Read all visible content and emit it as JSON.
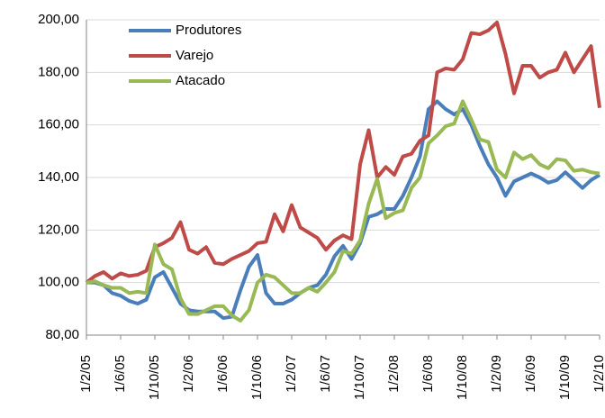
{
  "chart_data": {
    "type": "line",
    "categories": [
      "1/2/05",
      null,
      null,
      null,
      "1/6/05",
      null,
      null,
      null,
      "1/10/05",
      null,
      null,
      null,
      "1/2/06",
      null,
      null,
      null,
      "1/6/06",
      null,
      null,
      null,
      "1/10/06",
      null,
      null,
      null,
      "1/2/07",
      null,
      null,
      null,
      "1/6/07",
      null,
      null,
      null,
      "1/10/07",
      null,
      null,
      null,
      "1/2/08",
      null,
      null,
      null,
      "1/6/08",
      null,
      null,
      null,
      "1/10/08",
      null,
      null,
      null,
      "1/2/09",
      null,
      null,
      null,
      "1/6/09",
      null,
      null,
      null,
      "1/10/09",
      null,
      null,
      null,
      "1/2/10"
    ],
    "series": [
      {
        "name": "Produtores",
        "color": "#4a7ebb",
        "values": [
          100,
          100,
          99,
          96,
          95,
          93,
          92,
          93.5,
          102,
          104,
          98,
          92,
          89.5,
          89,
          89,
          89,
          86.5,
          87,
          97,
          106,
          110.5,
          96,
          92,
          92,
          93.5,
          96,
          98,
          99,
          103,
          110,
          114,
          109,
          115,
          125,
          126,
          128,
          128,
          133,
          140,
          148,
          166,
          169,
          166,
          164,
          166,
          160,
          152,
          145,
          140,
          133,
          138.5,
          140,
          141.5,
          140,
          138,
          139,
          142,
          139,
          136,
          139,
          141
        ]
      },
      {
        "name": "Varejo",
        "color": "#be4b48",
        "values": [
          100,
          102.5,
          104,
          101.5,
          103.5,
          102.5,
          103,
          104.5,
          113.5,
          115,
          117,
          123,
          112.5,
          111,
          113.5,
          107.5,
          107,
          109,
          110.5,
          112,
          115,
          115.5,
          126,
          119.5,
          129.5,
          121,
          119,
          117,
          112.5,
          116,
          118,
          116.5,
          145,
          158,
          140,
          144,
          141,
          148,
          149,
          154,
          156,
          180,
          181.5,
          181,
          185,
          195,
          194.5,
          196,
          199,
          187,
          172,
          182.5,
          182.5,
          178,
          180,
          181,
          187.5,
          180,
          185,
          190,
          166.5
        ]
      },
      {
        "name": "Atacado",
        "color": "#98b954",
        "values": [
          100,
          100.5,
          99,
          98,
          98,
          96,
          96.5,
          96,
          114.5,
          107,
          105,
          94,
          88,
          88,
          89.5,
          91,
          91,
          87.5,
          85.5,
          89.5,
          100,
          103,
          102,
          99,
          96,
          96,
          98,
          96.5,
          100,
          104,
          112,
          111,
          116,
          130,
          139.5,
          124.5,
          126.5,
          127.5,
          136,
          140,
          153,
          156,
          159.5,
          160.5,
          169,
          162,
          154.5,
          153.5,
          143,
          140,
          149.5,
          147,
          148.5,
          145,
          143.5,
          147,
          146.5,
          142.5,
          143,
          142,
          141.5
        ]
      }
    ],
    "ylim": [
      80,
      200
    ],
    "yticks": [
      {
        "value": 80,
        "label": "80,00"
      },
      {
        "value": 100,
        "label": "100,00"
      },
      {
        "value": 120,
        "label": "120,00"
      },
      {
        "value": 140,
        "label": "140,00"
      },
      {
        "value": 160,
        "label": "160,00"
      },
      {
        "value": 180,
        "label": "180,00"
      },
      {
        "value": 200,
        "label": "200,00"
      }
    ],
    "grid": true,
    "legend": "top-left"
  }
}
